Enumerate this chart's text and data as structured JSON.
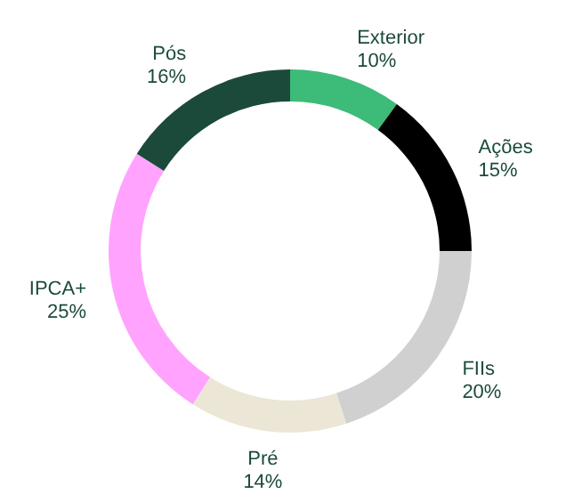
{
  "chart_data": {
    "type": "donut",
    "categories": [
      "Exterior",
      "Ações",
      "FIIs",
      "Pré",
      "IPCA+",
      "Pós"
    ],
    "values": [
      10,
      15,
      20,
      14,
      25,
      16
    ],
    "value_labels": [
      "10%",
      "15%",
      "20%",
      "14%",
      "25%",
      "16%"
    ],
    "colors": [
      "#3dbb78",
      "#000000",
      "#d0d0d0",
      "#ece6d6",
      "#ffa3ff",
      "#1b4a3a"
    ],
    "legend": false
  }
}
